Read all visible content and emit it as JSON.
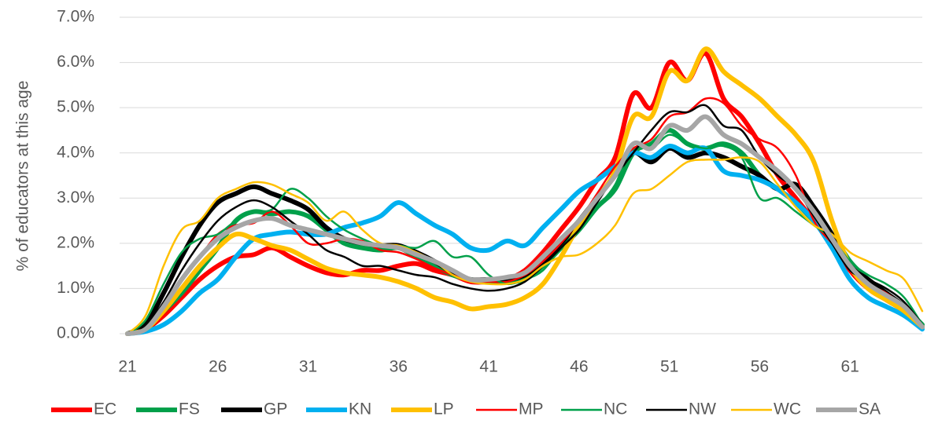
{
  "chart_data": {
    "type": "line",
    "y_label": "% of educators at this age",
    "x": [
      21,
      22,
      23,
      24,
      25,
      26,
      27,
      28,
      29,
      30,
      31,
      32,
      33,
      34,
      35,
      36,
      37,
      38,
      39,
      40,
      41,
      42,
      43,
      44,
      45,
      46,
      47,
      48,
      49,
      50,
      51,
      52,
      53,
      54,
      55,
      56,
      57,
      58,
      59,
      60,
      61,
      62,
      63,
      64,
      65
    ],
    "xlim": [
      21,
      65
    ],
    "xticks": [
      21,
      26,
      31,
      36,
      41,
      46,
      51,
      56,
      61
    ],
    "ylim": [
      0,
      7
    ],
    "yticks": [
      {
        "value": 0,
        "label": "0.0%"
      },
      {
        "value": 1,
        "label": "1.0%"
      },
      {
        "value": 2,
        "label": "2.0%"
      },
      {
        "value": 3,
        "label": "3.0%"
      },
      {
        "value": 4,
        "label": "4.0%"
      },
      {
        "value": 5,
        "label": "5.0%"
      },
      {
        "value": 6,
        "label": "6.0%"
      },
      {
        "value": 7,
        "label": "7.0%"
      }
    ],
    "grid": true,
    "legend": "bottom",
    "series": [
      {
        "name": "EC",
        "color": "#ff0000",
        "width": 6,
        "values": [
          0,
          0.1,
          0.4,
          0.8,
          1.2,
          1.5,
          1.7,
          1.75,
          1.9,
          1.7,
          1.5,
          1.35,
          1.3,
          1.4,
          1.4,
          1.5,
          1.55,
          1.4,
          1.3,
          1.15,
          1.15,
          1.2,
          1.4,
          1.8,
          2.3,
          2.8,
          3.4,
          3.9,
          5.3,
          5.0,
          6.0,
          5.6,
          6.2,
          5.2,
          4.8,
          4.2,
          3.5,
          3.0,
          2.5,
          2.0,
          1.4,
          1.0,
          0.75,
          0.5,
          0.15
        ]
      },
      {
        "name": "FS",
        "color": "#00a04a",
        "width": 6,
        "values": [
          0,
          0.15,
          0.5,
          0.9,
          1.4,
          1.9,
          2.5,
          2.7,
          2.65,
          2.7,
          2.6,
          2.3,
          2.0,
          1.9,
          1.85,
          1.9,
          1.7,
          1.5,
          1.3,
          1.2,
          1.15,
          1.15,
          1.2,
          1.5,
          1.9,
          2.3,
          2.8,
          3.2,
          4.0,
          4.2,
          4.5,
          4.2,
          4.1,
          4.2,
          4.0,
          3.5,
          3.2,
          2.9,
          2.5,
          2.2,
          1.6,
          1.2,
          0.9,
          0.6,
          0.2
        ]
      },
      {
        "name": "GP",
        "color": "#000000",
        "width": 6,
        "values": [
          0,
          0.2,
          0.9,
          1.7,
          2.4,
          2.9,
          3.1,
          3.25,
          3.1,
          2.95,
          2.75,
          2.35,
          2.1,
          2.0,
          1.95,
          1.95,
          1.8,
          1.6,
          1.35,
          1.2,
          1.2,
          1.2,
          1.3,
          1.6,
          2.0,
          2.5,
          3.0,
          3.5,
          4.0,
          3.8,
          4.1,
          3.9,
          4.0,
          3.9,
          3.7,
          3.5,
          3.2,
          3.3,
          2.8,
          2.2,
          1.5,
          1.2,
          0.9,
          0.6,
          0.15
        ]
      },
      {
        "name": "KN",
        "color": "#00b0f0",
        "width": 6,
        "values": [
          0,
          0.05,
          0.2,
          0.5,
          0.9,
          1.2,
          1.7,
          2.1,
          2.2,
          2.25,
          2.2,
          2.2,
          2.35,
          2.45,
          2.6,
          2.9,
          2.65,
          2.4,
          2.2,
          1.9,
          1.85,
          2.05,
          1.95,
          2.35,
          2.75,
          3.15,
          3.4,
          3.7,
          4.0,
          3.9,
          4.15,
          4.0,
          4.1,
          3.6,
          3.5,
          3.4,
          3.2,
          2.9,
          2.5,
          1.9,
          1.2,
          0.8,
          0.6,
          0.4,
          0.1
        ]
      },
      {
        "name": "LP",
        "color": "#ffc000",
        "width": 6,
        "values": [
          0,
          0.1,
          0.5,
          1.0,
          1.5,
          1.9,
          2.2,
          2.1,
          1.95,
          1.85,
          1.65,
          1.45,
          1.35,
          1.3,
          1.25,
          1.15,
          1.0,
          0.8,
          0.7,
          0.55,
          0.6,
          0.65,
          0.8,
          1.1,
          1.7,
          2.4,
          3.0,
          3.6,
          4.8,
          4.8,
          5.8,
          5.6,
          6.3,
          5.8,
          5.5,
          5.2,
          4.8,
          4.4,
          3.8,
          2.5,
          1.5,
          1.0,
          0.75,
          0.5,
          0.15
        ]
      },
      {
        "name": "MP",
        "color": "#ff0000",
        "width": 2.5,
        "values": [
          0,
          0.1,
          0.6,
          1.2,
          1.7,
          2.2,
          2.4,
          2.45,
          2.7,
          2.4,
          2.0,
          2.0,
          2.1,
          2.05,
          1.85,
          1.8,
          1.65,
          1.45,
          1.3,
          1.15,
          1.15,
          1.15,
          1.3,
          1.6,
          2.0,
          2.5,
          3.1,
          3.7,
          4.1,
          4.3,
          4.8,
          4.9,
          5.2,
          5.1,
          4.6,
          4.3,
          4.1,
          3.5,
          2.5,
          2.0,
          1.5,
          1.1,
          0.9,
          0.6,
          0.2
        ]
      },
      {
        "name": "NC",
        "color": "#00a04a",
        "width": 2.5,
        "values": [
          0,
          0.3,
          1.1,
          1.8,
          2.1,
          2.2,
          2.5,
          2.7,
          2.75,
          3.2,
          3.0,
          2.6,
          2.3,
          2.1,
          1.95,
          1.95,
          1.9,
          2.05,
          1.7,
          1.7,
          1.3,
          1.1,
          1.2,
          1.4,
          1.9,
          2.3,
          2.8,
          3.3,
          4.2,
          4.1,
          4.4,
          4.2,
          4.1,
          4.15,
          3.9,
          3.0,
          3.0,
          2.7,
          2.4,
          2.1,
          1.6,
          1.3,
          1.1,
          0.8,
          0.2
        ]
      },
      {
        "name": "NW",
        "color": "#000000",
        "width": 2.5,
        "values": [
          0,
          0.15,
          0.7,
          1.4,
          2.0,
          2.5,
          2.8,
          2.95,
          2.8,
          2.5,
          2.2,
          1.85,
          1.7,
          1.5,
          1.5,
          1.4,
          1.3,
          1.25,
          1.1,
          1.0,
          0.95,
          1.0,
          1.15,
          1.5,
          1.9,
          2.3,
          2.9,
          3.5,
          4.0,
          4.5,
          4.9,
          4.9,
          5.05,
          4.6,
          4.5,
          3.9,
          3.5,
          3.2,
          2.6,
          2.0,
          1.4,
          1.2,
          1.0,
          0.7,
          0.2
        ]
      },
      {
        "name": "WC",
        "color": "#ffc000",
        "width": 2.5,
        "values": [
          0,
          0.4,
          1.5,
          2.3,
          2.5,
          3.0,
          3.2,
          3.35,
          3.3,
          3.1,
          2.9,
          2.5,
          2.7,
          2.3,
          2.0,
          1.95,
          1.8,
          1.6,
          1.3,
          1.15,
          1.1,
          1.1,
          1.2,
          1.5,
          1.7,
          1.75,
          2.0,
          2.4,
          3.1,
          3.2,
          3.5,
          3.8,
          3.85,
          3.85,
          3.9,
          3.8,
          3.3,
          2.8,
          2.4,
          2.2,
          1.8,
          1.6,
          1.4,
          1.2,
          0.5
        ]
      },
      {
        "name": "SA",
        "color": "#a6a6a6",
        "width": 6,
        "values": [
          0,
          0.1,
          0.6,
          1.2,
          1.7,
          2.1,
          2.35,
          2.5,
          2.55,
          2.4,
          2.3,
          2.2,
          2.1,
          2.0,
          1.95,
          1.9,
          1.75,
          1.6,
          1.4,
          1.2,
          1.2,
          1.25,
          1.35,
          1.7,
          2.1,
          2.5,
          3.0,
          3.5,
          4.2,
          4.1,
          4.6,
          4.5,
          4.8,
          4.4,
          4.2,
          3.9,
          3.6,
          3.2,
          2.7,
          2.1,
          1.5,
          1.1,
          0.85,
          0.6,
          0.15
        ]
      }
    ]
  }
}
